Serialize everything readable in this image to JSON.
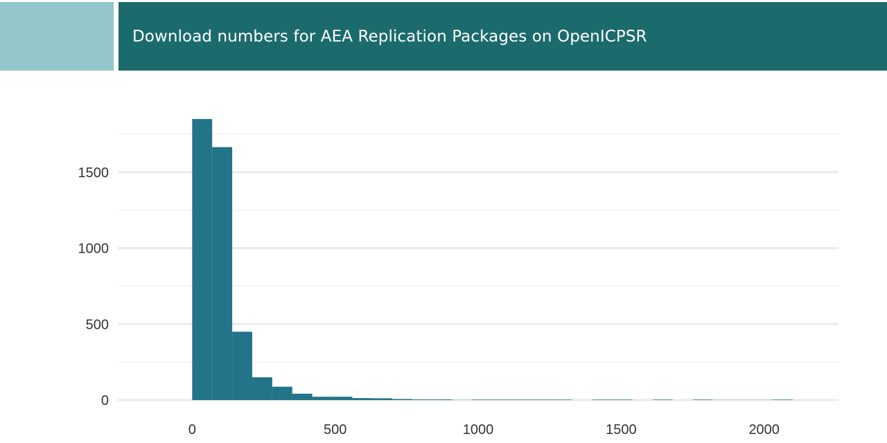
{
  "header": {
    "title": "Download numbers for AEA Replication Packages on OpenICPSR"
  },
  "colors": {
    "accent": "#93c6c8",
    "title_bar": "#1c6b6c",
    "bar": "#237389",
    "grid_major": "#ebebeb",
    "grid_minor": "#f2f2f2"
  },
  "chart_data": {
    "type": "bar",
    "subtype": "histogram",
    "title": "Download numbers for AEA Replication Packages on OpenICPSR",
    "xlabel": "",
    "ylabel": "",
    "bin_width": 70,
    "bins": [
      {
        "start": 0,
        "end": 70,
        "count": 1850
      },
      {
        "start": 70,
        "end": 140,
        "count": 1665
      },
      {
        "start": 140,
        "end": 210,
        "count": 450
      },
      {
        "start": 210,
        "end": 280,
        "count": 150
      },
      {
        "start": 280,
        "end": 350,
        "count": 88
      },
      {
        "start": 350,
        "end": 420,
        "count": 42
      },
      {
        "start": 420,
        "end": 490,
        "count": 22
      },
      {
        "start": 490,
        "end": 560,
        "count": 22
      },
      {
        "start": 560,
        "end": 630,
        "count": 13
      },
      {
        "start": 630,
        "end": 700,
        "count": 12
      },
      {
        "start": 700,
        "end": 770,
        "count": 7
      },
      {
        "start": 770,
        "end": 840,
        "count": 4
      },
      {
        "start": 840,
        "end": 910,
        "count": 4
      },
      {
        "start": 910,
        "end": 980,
        "count": 1
      },
      {
        "start": 980,
        "end": 1050,
        "count": 3
      },
      {
        "start": 1050,
        "end": 1120,
        "count": 3
      },
      {
        "start": 1120,
        "end": 1190,
        "count": 3
      },
      {
        "start": 1190,
        "end": 1260,
        "count": 3
      },
      {
        "start": 1260,
        "end": 1330,
        "count": 3
      },
      {
        "start": 1330,
        "end": 1400,
        "count": 0
      },
      {
        "start": 1400,
        "end": 1470,
        "count": 3
      },
      {
        "start": 1470,
        "end": 1540,
        "count": 3
      },
      {
        "start": 1540,
        "end": 1610,
        "count": 0
      },
      {
        "start": 1610,
        "end": 1680,
        "count": 3
      },
      {
        "start": 1680,
        "end": 1750,
        "count": 0
      },
      {
        "start": 1750,
        "end": 1820,
        "count": 3
      },
      {
        "start": 1820,
        "end": 1890,
        "count": 1
      },
      {
        "start": 1890,
        "end": 1960,
        "count": 1
      },
      {
        "start": 1960,
        "end": 2030,
        "count": 1
      },
      {
        "start": 2030,
        "end": 2100,
        "count": 3
      }
    ],
    "xlim": [
      -260,
      2260
    ],
    "ylim": [
      0,
      1950
    ],
    "x_ticks": [
      0,
      500,
      1000,
      1500,
      2000
    ],
    "x_tick_labels": [
      "0",
      "500",
      "1000",
      "1500",
      "2000"
    ],
    "y_ticks": [
      0,
      500,
      1000,
      1500
    ],
    "y_tick_labels": [
      "0",
      "500",
      "1000",
      "1500"
    ],
    "y_minor_ticks": [
      250,
      750,
      1250,
      1750
    ],
    "grid": true,
    "legend": "none"
  }
}
